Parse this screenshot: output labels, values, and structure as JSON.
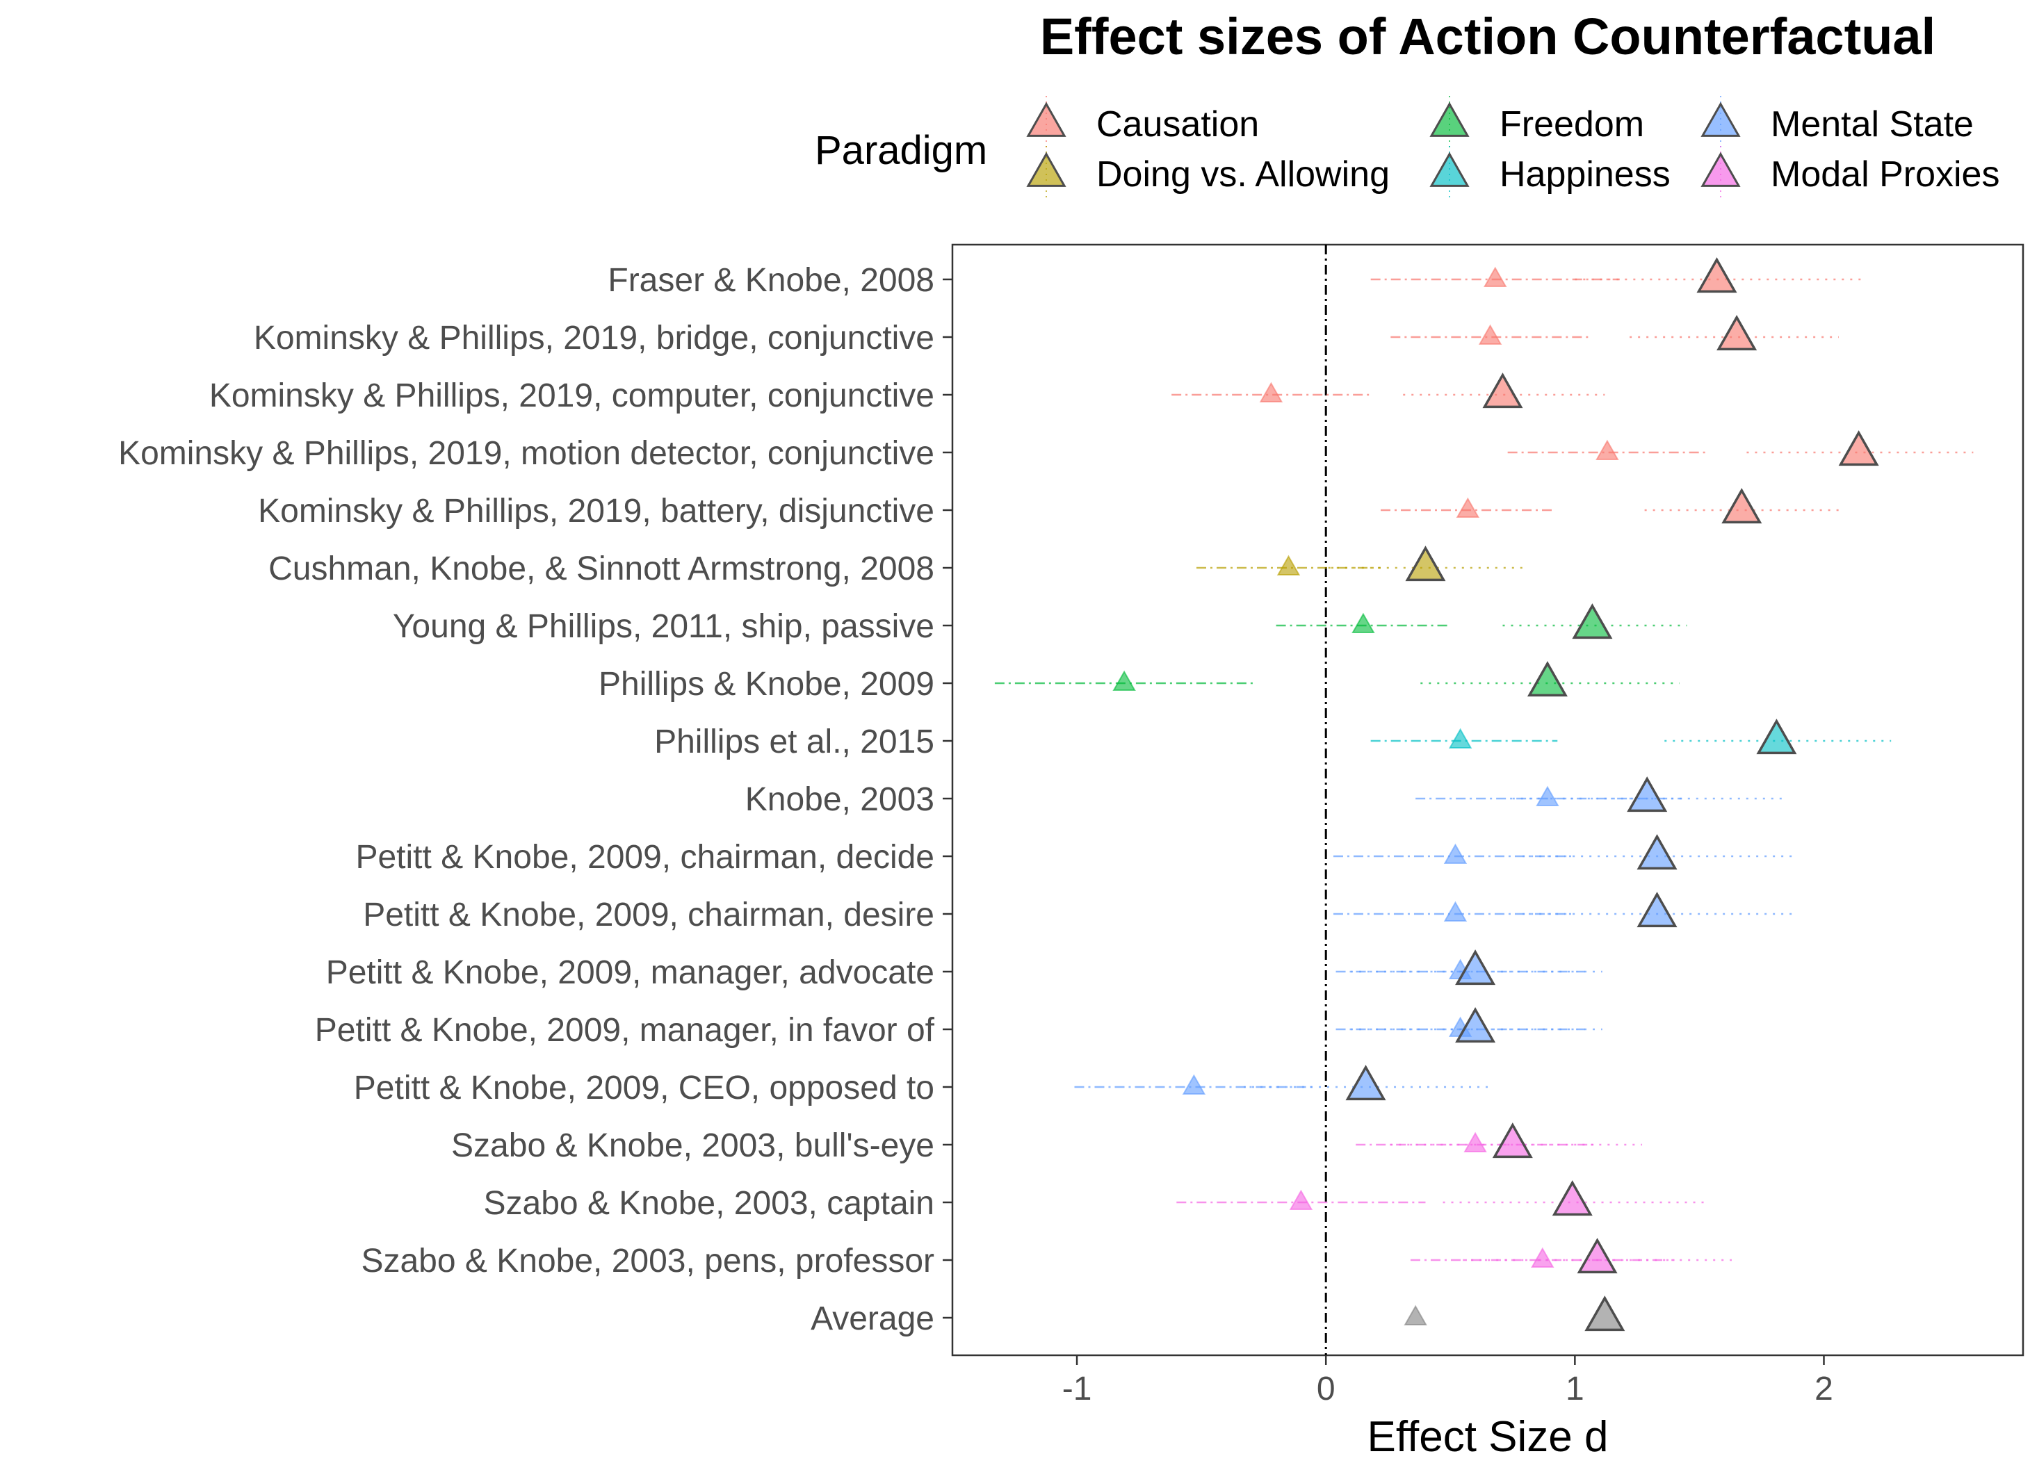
{
  "chart_data": {
    "type": "scatter",
    "title": "Effect sizes of Action Counterfactual",
    "xlabel": "Effect Size d",
    "ylabel": "",
    "xlim": [
      -1.5,
      2.8
    ],
    "xticks": [
      -1,
      0,
      1,
      2
    ],
    "xtick_labels": [
      "-1",
      "0",
      "1",
      "2"
    ],
    "reference_line": 0,
    "grid": false,
    "legend": {
      "title": "Paradigm",
      "placement": "top",
      "entries": [
        {
          "name": "Causation",
          "color": "#F8766D"
        },
        {
          "name": "Doing vs. Allowing",
          "color": "#B79F00"
        },
        {
          "name": "Freedom",
          "color": "#00BA38"
        },
        {
          "name": "Happiness",
          "color": "#00BFC4"
        },
        {
          "name": "Mental State",
          "color": "#619CFF"
        },
        {
          "name": "Modal Proxies",
          "color": "#F564E3"
        }
      ]
    },
    "average_color": "#808080",
    "rows": [
      {
        "label": "Fraser & Knobe, 2008",
        "paradigm": "Causation",
        "small": {
          "d": 0.68,
          "ci": [
            0.18,
            1.18
          ]
        },
        "large": {
          "d": 1.57,
          "ci": [
            1.0,
            2.15
          ]
        }
      },
      {
        "label": "Kominsky & Phillips, 2019, bridge, conjunctive",
        "paradigm": "Causation",
        "small": {
          "d": 0.66,
          "ci": [
            0.26,
            1.06
          ]
        },
        "large": {
          "d": 1.65,
          "ci": [
            1.22,
            2.06
          ]
        }
      },
      {
        "label": "Kominsky & Phillips, 2019, computer, conjunctive",
        "paradigm": "Causation",
        "small": {
          "d": -0.22,
          "ci": [
            -0.62,
            0.18
          ]
        },
        "large": {
          "d": 0.71,
          "ci": [
            0.31,
            1.12
          ]
        }
      },
      {
        "label": "Kominsky & Phillips, 2019, motion detector, conjunctive",
        "paradigm": "Causation",
        "small": {
          "d": 1.13,
          "ci": [
            0.73,
            1.53
          ]
        },
        "large": {
          "d": 2.14,
          "ci": [
            1.69,
            2.6
          ]
        }
      },
      {
        "label": "Kominsky & Phillips, 2019, battery, disjunctive",
        "paradigm": "Causation",
        "small": {
          "d": 0.57,
          "ci": [
            0.22,
            0.92
          ]
        },
        "large": {
          "d": 1.67,
          "ci": [
            1.28,
            2.07
          ]
        }
      },
      {
        "label": "Cushman, Knobe, & Sinnott Armstrong, 2008",
        "paradigm": "Doing vs. Allowing",
        "small": {
          "d": -0.15,
          "ci": [
            -0.52,
            0.22
          ]
        },
        "large": {
          "d": 0.4,
          "ci": [
            0.01,
            0.8
          ]
        }
      },
      {
        "label": "Young & Phillips, 2011, ship, passive",
        "paradigm": "Freedom",
        "small": {
          "d": 0.15,
          "ci": [
            -0.2,
            0.5
          ]
        },
        "large": {
          "d": 1.07,
          "ci": [
            0.71,
            1.45
          ]
        }
      },
      {
        "label": "Phillips & Knobe, 2009",
        "paradigm": "Freedom",
        "small": {
          "d": -0.81,
          "ci": [
            -1.33,
            -0.28
          ]
        },
        "large": {
          "d": 0.89,
          "ci": [
            0.38,
            1.42
          ]
        }
      },
      {
        "label": "Phillips et al., 2015",
        "paradigm": "Happiness",
        "small": {
          "d": 0.54,
          "ci": [
            0.18,
            0.93
          ]
        },
        "large": {
          "d": 1.81,
          "ci": [
            1.36,
            2.27
          ]
        }
      },
      {
        "label": "Knobe, 2003",
        "paradigm": "Mental State",
        "small": {
          "d": 0.89,
          "ci": [
            0.36,
            1.43
          ]
        },
        "large": {
          "d": 1.29,
          "ci": [
            0.75,
            1.84
          ]
        }
      },
      {
        "label": "Petitt & Knobe, 2009, chairman, decide",
        "paradigm": "Mental State",
        "small": {
          "d": 0.52,
          "ci": [
            0.03,
            1.0
          ]
        },
        "large": {
          "d": 1.33,
          "ci": [
            0.79,
            1.89
          ]
        }
      },
      {
        "label": "Petitt & Knobe, 2009, chairman, desire",
        "paradigm": "Mental State",
        "small": {
          "d": 0.52,
          "ci": [
            0.03,
            1.0
          ]
        },
        "large": {
          "d": 1.33,
          "ci": [
            0.79,
            1.89
          ]
        }
      },
      {
        "label": "Petitt & Knobe, 2009, manager, advocate",
        "paradigm": "Mental State",
        "small": {
          "d": 0.54,
          "ci": [
            0.04,
            1.04
          ]
        },
        "large": {
          "d": 0.6,
          "ci": [
            0.1,
            1.11
          ]
        }
      },
      {
        "label": "Petitt & Knobe, 2009, manager, in favor of",
        "paradigm": "Mental State",
        "small": {
          "d": 0.54,
          "ci": [
            0.04,
            1.04
          ]
        },
        "large": {
          "d": 0.6,
          "ci": [
            0.1,
            1.11
          ]
        }
      },
      {
        "label": "Petitt & Knobe, 2009, CEO, opposed to",
        "paradigm": "Mental State",
        "small": {
          "d": -0.53,
          "ci": [
            -1.01,
            -0.05
          ]
        },
        "large": {
          "d": 0.16,
          "ci": [
            -0.33,
            0.66
          ]
        }
      },
      {
        "label": "Szabo & Knobe, 2003, bull's-eye",
        "paradigm": "Modal Proxies",
        "small": {
          "d": 0.6,
          "ci": [
            0.12,
            1.08
          ]
        },
        "large": {
          "d": 0.75,
          "ci": [
            0.26,
            1.27
          ]
        }
      },
      {
        "label": "Szabo & Knobe, 2003, captain",
        "paradigm": "Modal Proxies",
        "small": {
          "d": -0.1,
          "ci": [
            -0.6,
            0.4
          ]
        },
        "large": {
          "d": 0.99,
          "ci": [
            0.47,
            1.52
          ]
        }
      },
      {
        "label": "Szabo & Knobe, 2003, pens, professor",
        "paradigm": "Modal Proxies",
        "small": {
          "d": 0.87,
          "ci": [
            0.34,
            1.4
          ]
        },
        "large": {
          "d": 1.09,
          "ci": [
            0.55,
            1.63
          ]
        }
      },
      {
        "label": "Average",
        "paradigm": "Average",
        "small": {
          "d": 0.36,
          "ci": null
        },
        "large": {
          "d": 1.12,
          "ci": null
        }
      }
    ]
  }
}
